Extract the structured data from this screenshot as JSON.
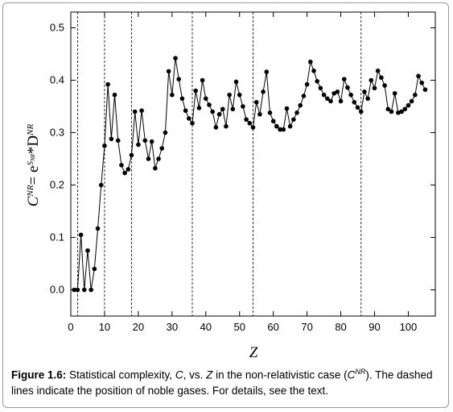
{
  "chart_data": {
    "type": "line",
    "ylabel_parts": [
      "C",
      "NR",
      "= e",
      "S",
      "NR",
      "*D",
      "NR"
    ],
    "xlabel": "Z",
    "x": [
      1,
      2,
      3,
      4,
      5,
      6,
      7,
      8,
      9,
      10,
      11,
      12,
      13,
      14,
      15,
      16,
      17,
      18,
      19,
      20,
      21,
      22,
      23,
      24,
      25,
      26,
      27,
      28,
      29,
      30,
      31,
      32,
      33,
      34,
      35,
      36,
      37,
      38,
      39,
      40,
      41,
      42,
      43,
      44,
      45,
      46,
      47,
      48,
      49,
      50,
      51,
      52,
      53,
      54,
      55,
      56,
      57,
      58,
      59,
      60,
      61,
      62,
      63,
      64,
      65,
      66,
      67,
      68,
      69,
      70,
      71,
      72,
      73,
      74,
      75,
      76,
      77,
      78,
      79,
      80,
      81,
      82,
      83,
      84,
      85,
      86,
      87,
      88,
      89,
      90,
      91,
      92,
      93,
      94,
      95,
      96,
      97,
      98,
      99,
      100,
      101,
      102,
      103,
      104,
      105
    ],
    "series": [
      {
        "color": "#000000",
        "values": [
          0,
          0,
          0.105,
          0,
          0.075,
          0,
          0.04,
          0.117,
          0.2,
          0.275,
          0.392,
          0.288,
          0.372,
          0.285,
          0.238,
          0.223,
          0.23,
          0.257,
          0.34,
          0.277,
          0.342,
          0.285,
          0.25,
          0.283,
          0.232,
          0.25,
          0.27,
          0.3,
          0.417,
          0.372,
          0.442,
          0.402,
          0.365,
          0.342,
          0.327,
          0.318,
          0.38,
          0.347,
          0.4,
          0.365,
          0.353,
          0.34,
          0.31,
          0.335,
          0.345,
          0.312,
          0.372,
          0.345,
          0.397,
          0.372,
          0.35,
          0.325,
          0.318,
          0.31,
          0.358,
          0.335,
          0.378,
          0.416,
          0.338,
          0.322,
          0.312,
          0.306,
          0.306,
          0.346,
          0.312,
          0.325,
          0.338,
          0.352,
          0.37,
          0.392,
          0.435,
          0.418,
          0.398,
          0.385,
          0.372,
          0.365,
          0.36,
          0.375,
          0.378,
          0.36,
          0.402,
          0.386,
          0.372,
          0.358,
          0.348,
          0.34,
          0.378,
          0.365,
          0.4,
          0.385,
          0.418,
          0.405,
          0.39,
          0.345,
          0.34,
          0.375,
          0.338,
          0.34,
          0.345,
          0.352,
          0.36,
          0.372,
          0.408,
          0.395,
          0.382
        ]
      }
    ],
    "reference_lines_x": [
      2,
      10,
      18,
      36,
      54,
      86
    ],
    "xlim": [
      0,
      108
    ],
    "xticks": [
      0,
      10,
      20,
      30,
      40,
      50,
      60,
      70,
      80,
      90,
      100
    ],
    "ylim": [
      -0.05,
      0.53
    ],
    "yticks": [
      {
        "value": 0,
        "label": "0.0"
      },
      0.1,
      0.2,
      0.3,
      0.4,
      0.5
    ]
  },
  "caption": {
    "label": "Figure 1.6:",
    "parts": [
      " Statistical complexity, ",
      "C",
      ", vs. ",
      "Z",
      " in the non-relativistic case (",
      "C",
      "NR",
      "). The dashed lines indicate the position of noble gases. For details, see the text."
    ]
  }
}
